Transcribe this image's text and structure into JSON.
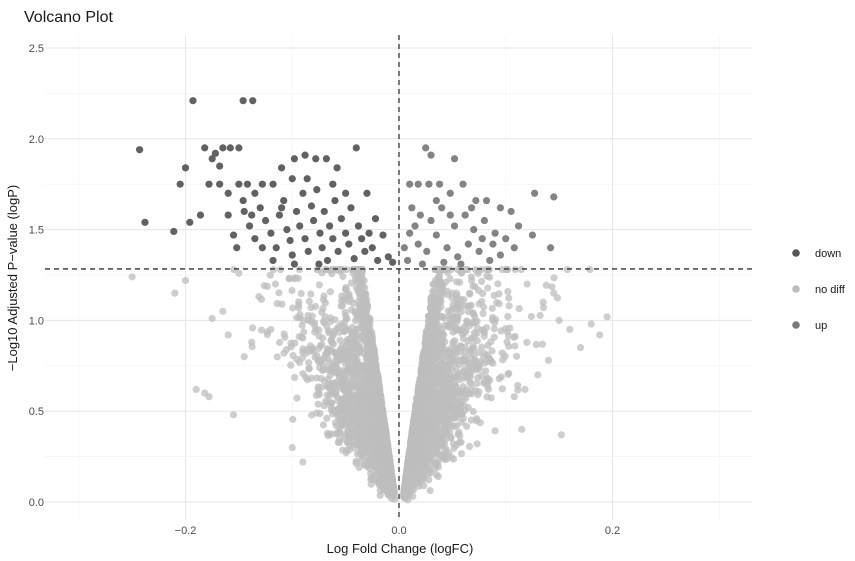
{
  "chart_data": {
    "type": "scatter",
    "title": "Volcano Plot",
    "xlabel": "Log Fold Change (logFC)",
    "ylabel": "−Log10 Adjusted P−value (logP)",
    "xlim": [
      -0.325,
      0.33
    ],
    "ylim": [
      -0.1,
      2.58
    ],
    "x_ticks": [
      {
        "v": -0.2,
        "label": "−0.2"
      },
      {
        "v": 0.0,
        "label": "0.0"
      },
      {
        "v": 0.2,
        "label": "0.2"
      }
    ],
    "y_ticks": [
      {
        "v": 0.0,
        "label": "0.0"
      },
      {
        "v": 0.5,
        "label": "0.5"
      },
      {
        "v": 1.0,
        "label": "1.0"
      },
      {
        "v": 1.5,
        "label": "1.5"
      },
      {
        "v": 2.0,
        "label": "2.0"
      },
      {
        "v": 2.5,
        "label": "2.5"
      }
    ],
    "grid": true,
    "threshold_lines": {
      "x": 0.0,
      "y": 1.3
    },
    "legend": {
      "position": "right",
      "entries": [
        {
          "label": "down",
          "color": "#555555"
        },
        {
          "label": "no diff",
          "color": "#bdbdbd"
        },
        {
          "label": "up",
          "color": "#7a7a7a"
        }
      ]
    },
    "series": [
      {
        "name": "down",
        "color": "#555555",
        "points": [
          [
            -0.243,
            1.94
          ],
          [
            -0.238,
            1.54
          ],
          [
            -0.193,
            2.21
          ],
          [
            -0.146,
            2.21
          ],
          [
            -0.137,
            2.21
          ],
          [
            -0.2,
            1.84
          ],
          [
            -0.205,
            1.75
          ],
          [
            -0.211,
            1.49
          ],
          [
            -0.196,
            1.54
          ],
          [
            -0.182,
            1.95
          ],
          [
            -0.172,
            1.92
          ],
          [
            -0.165,
            1.95
          ],
          [
            -0.158,
            1.95
          ],
          [
            -0.15,
            1.95
          ],
          [
            -0.175,
            1.89
          ],
          [
            -0.168,
            1.85
          ],
          [
            -0.178,
            1.75
          ],
          [
            -0.168,
            1.75
          ],
          [
            -0.16,
            1.7
          ],
          [
            -0.15,
            1.75
          ],
          [
            -0.142,
            1.75
          ],
          [
            -0.135,
            1.7
          ],
          [
            -0.128,
            1.75
          ],
          [
            -0.118,
            1.75
          ],
          [
            -0.11,
            1.84
          ],
          [
            -0.098,
            1.89
          ],
          [
            -0.088,
            1.91
          ],
          [
            -0.078,
            1.89
          ],
          [
            -0.068,
            1.89
          ],
          [
            -0.058,
            1.84
          ],
          [
            -0.04,
            1.95
          ],
          [
            -0.03,
            1.7
          ],
          [
            -0.022,
            1.56
          ],
          [
            -0.015,
            1.47
          ],
          [
            -0.01,
            1.35
          ],
          [
            -0.006,
            1.32
          ],
          [
            -0.16,
            1.58
          ],
          [
            -0.155,
            1.47
          ],
          [
            -0.152,
            1.4
          ],
          [
            -0.145,
            1.6
          ],
          [
            -0.14,
            1.52
          ],
          [
            -0.135,
            1.45
          ],
          [
            -0.13,
            1.62
          ],
          [
            -0.125,
            1.55
          ],
          [
            -0.12,
            1.48
          ],
          [
            -0.115,
            1.4
          ],
          [
            -0.112,
            1.58
          ],
          [
            -0.108,
            1.66
          ],
          [
            -0.105,
            1.5
          ],
          [
            -0.102,
            1.44
          ],
          [
            -0.1,
            1.36
          ],
          [
            -0.096,
            1.6
          ],
          [
            -0.093,
            1.52
          ],
          [
            -0.09,
            1.7
          ],
          [
            -0.088,
            1.45
          ],
          [
            -0.085,
            1.38
          ],
          [
            -0.082,
            1.63
          ],
          [
            -0.08,
            1.55
          ],
          [
            -0.077,
            1.72
          ],
          [
            -0.074,
            1.48
          ],
          [
            -0.072,
            1.4
          ],
          [
            -0.07,
            1.6
          ],
          [
            -0.067,
            1.33
          ],
          [
            -0.065,
            1.52
          ],
          [
            -0.062,
            1.45
          ],
          [
            -0.06,
            1.66
          ],
          [
            -0.057,
            1.38
          ],
          [
            -0.054,
            1.56
          ],
          [
            -0.05,
            1.48
          ],
          [
            -0.047,
            1.42
          ],
          [
            -0.045,
            1.62
          ],
          [
            -0.042,
            1.34
          ],
          [
            -0.038,
            1.52
          ],
          [
            -0.035,
            1.45
          ],
          [
            -0.032,
            1.38
          ],
          [
            -0.028,
            1.48
          ],
          [
            -0.025,
            1.4
          ],
          [
            -0.02,
            1.33
          ],
          [
            -0.118,
            1.33
          ],
          [
            -0.098,
            1.31
          ],
          [
            -0.075,
            1.31
          ],
          [
            -0.128,
            1.4
          ],
          [
            -0.138,
            1.58
          ],
          [
            -0.11,
            1.62
          ],
          [
            -0.062,
            1.75
          ],
          [
            -0.05,
            1.7
          ],
          [
            -0.086,
            1.78
          ],
          [
            -0.1,
            1.78
          ],
          [
            -0.146,
            1.66
          ],
          [
            -0.186,
            1.58
          ]
        ]
      },
      {
        "name": "up",
        "color": "#7a7a7a",
        "points": [
          [
            0.025,
            1.95
          ],
          [
            0.052,
            1.89
          ],
          [
            0.127,
            1.7
          ],
          [
            0.145,
            1.68
          ],
          [
            0.125,
            1.47
          ],
          [
            0.142,
            1.4
          ],
          [
            0.03,
            1.91
          ],
          [
            0.01,
            1.75
          ],
          [
            0.018,
            1.75
          ],
          [
            0.028,
            1.75
          ],
          [
            0.038,
            1.75
          ],
          [
            0.048,
            1.7
          ],
          [
            0.06,
            1.75
          ],
          [
            0.072,
            1.66
          ],
          [
            0.082,
            1.66
          ],
          [
            0.095,
            1.62
          ],
          [
            0.105,
            1.6
          ],
          [
            0.012,
            1.62
          ],
          [
            0.02,
            1.58
          ],
          [
            0.03,
            1.55
          ],
          [
            0.04,
            1.62
          ],
          [
            0.052,
            1.52
          ],
          [
            0.062,
            1.58
          ],
          [
            0.07,
            1.5
          ],
          [
            0.08,
            1.55
          ],
          [
            0.09,
            1.48
          ],
          [
            0.1,
            1.45
          ],
          [
            0.108,
            1.4
          ],
          [
            0.01,
            1.48
          ],
          [
            0.018,
            1.42
          ],
          [
            0.026,
            1.38
          ],
          [
            0.035,
            1.47
          ],
          [
            0.045,
            1.4
          ],
          [
            0.055,
            1.35
          ],
          [
            0.065,
            1.42
          ],
          [
            0.075,
            1.38
          ],
          [
            0.085,
            1.33
          ],
          [
            0.095,
            1.36
          ],
          [
            0.008,
            1.33
          ],
          [
            0.022,
            1.31
          ],
          [
            0.042,
            1.32
          ],
          [
            0.058,
            1.31
          ],
          [
            0.015,
            1.52
          ],
          [
            0.048,
            1.58
          ],
          [
            0.088,
            1.42
          ],
          [
            0.035,
            1.66
          ],
          [
            0.068,
            1.62
          ],
          [
            0.005,
            1.4
          ],
          [
            0.112,
            1.52
          ],
          [
            0.078,
            1.45
          ]
        ]
      },
      {
        "name": "no diff",
        "color": "#bdbdbd",
        "generated_count": 5200,
        "points": [
          [
            -0.25,
            1.24
          ],
          [
            -0.21,
            1.15
          ],
          [
            -0.2,
            1.22
          ],
          [
            -0.175,
            1.01
          ],
          [
            -0.165,
            1.05
          ],
          [
            -0.182,
            0.6
          ],
          [
            -0.178,
            0.58
          ],
          [
            -0.19,
            0.62
          ],
          [
            -0.155,
            0.48
          ],
          [
            -0.145,
            0.8
          ],
          [
            -0.138,
            0.88
          ],
          [
            -0.16,
            0.92
          ],
          [
            -0.12,
            0.95
          ],
          [
            0.15,
            1.0
          ],
          [
            0.16,
            0.95
          ],
          [
            0.18,
            0.98
          ],
          [
            0.195,
            1.02
          ],
          [
            0.188,
            0.92
          ],
          [
            0.17,
            0.85
          ],
          [
            0.14,
            0.78
          ],
          [
            0.13,
            0.7
          ],
          [
            0.118,
            0.62
          ],
          [
            0.115,
            0.4
          ],
          [
            0.152,
            0.37
          ],
          [
            0.108,
            0.58
          ],
          [
            -0.1,
            0.3
          ],
          [
            -0.09,
            0.22
          ],
          [
            -0.15,
            1.26
          ],
          [
            0.12,
            1.2
          ],
          [
            0.135,
            1.1
          ],
          [
            0.145,
            1.15
          ]
        ]
      }
    ]
  }
}
